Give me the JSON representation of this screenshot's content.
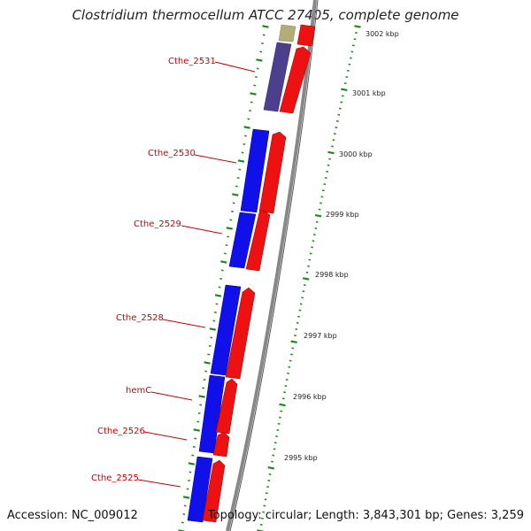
{
  "title": "Clostridium thermocellum ATCC 27405, complete genome",
  "footer": {
    "accession": "Accession: NC_009012",
    "topology": "Topology: circular; Length: 3,843,301 bp; Genes: 3,259"
  },
  "colors": {
    "inner_blue": "#1010e8",
    "inner_purple": "#4c3f8e",
    "inner_olive": "#b5ad78",
    "outer_red": "#ee1111",
    "backbone": "#888888",
    "tick_green": "#1a8a1a",
    "gene_label": "#cc0000"
  },
  "scale_ticks": [
    {
      "label": "3002 kbp"
    },
    {
      "label": "3001 kbp"
    },
    {
      "label": "3000 kbp"
    },
    {
      "label": "2999 kbp"
    },
    {
      "label": "2998 kbp"
    },
    {
      "label": "2997 kbp"
    },
    {
      "label": "2996 kbp"
    },
    {
      "label": "2995 kbp"
    }
  ],
  "gene_labels": [
    {
      "label": "Cthe_2531"
    },
    {
      "label": "Cthe_2530"
    },
    {
      "label": "Cthe_2529"
    },
    {
      "label": "Cthe_2528"
    },
    {
      "label": "hemC"
    },
    {
      "label": "Cthe_2526"
    },
    {
      "label": "Cthe_2525"
    }
  ]
}
